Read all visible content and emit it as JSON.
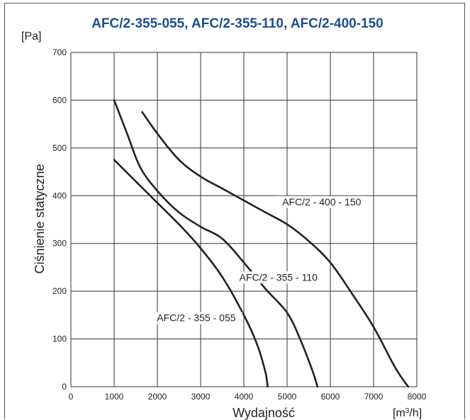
{
  "chart_data": {
    "type": "line",
    "title": "AFC/2-355-055, AFC/2-355-110, AFC/2-400-150",
    "ylabel": "Ciśnienie statyczne",
    "yunit": "[Pa]",
    "xlabel": "Wydajność",
    "xunit": "[m³/h]",
    "xlim": [
      0,
      8000
    ],
    "ylim": [
      0,
      700
    ],
    "xticks": [
      0,
      1000,
      2000,
      3000,
      4000,
      5000,
      6000,
      7000,
      8000
    ],
    "yticks": [
      0,
      100,
      200,
      300,
      400,
      500,
      600,
      700
    ],
    "grid": true,
    "series": [
      {
        "name": "AFC/2 - 355 - 055",
        "points": [
          [
            1000,
            475
          ],
          [
            1500,
            430
          ],
          [
            2000,
            385
          ],
          [
            2500,
            340
          ],
          [
            3000,
            290
          ],
          [
            3500,
            230
          ],
          [
            4000,
            150
          ],
          [
            4300,
            90
          ],
          [
            4500,
            30
          ],
          [
            4550,
            0
          ]
        ]
      },
      {
        "name": "AFC/2 - 355 - 110",
        "points": [
          [
            1000,
            600
          ],
          [
            1300,
            530
          ],
          [
            1600,
            460
          ],
          [
            2000,
            410
          ],
          [
            2500,
            365
          ],
          [
            3000,
            335
          ],
          [
            3500,
            310
          ],
          [
            4000,
            260
          ],
          [
            4500,
            205
          ],
          [
            5000,
            155
          ],
          [
            5300,
            100
          ],
          [
            5600,
            30
          ],
          [
            5700,
            0
          ]
        ]
      },
      {
        "name": "AFC/2 - 400 - 150",
        "points": [
          [
            1650,
            575
          ],
          [
            2000,
            530
          ],
          [
            2500,
            475
          ],
          [
            3000,
            440
          ],
          [
            3500,
            415
          ],
          [
            4000,
            390
          ],
          [
            4500,
            365
          ],
          [
            5000,
            340
          ],
          [
            5500,
            305
          ],
          [
            6000,
            260
          ],
          [
            6500,
            195
          ],
          [
            7000,
            125
          ],
          [
            7500,
            40
          ],
          [
            7800,
            0
          ]
        ]
      }
    ],
    "labels": [
      {
        "text": "AFC/2 - 400 - 150",
        "x": 5800,
        "y": 380
      },
      {
        "text": "AFC/2 - 355 - 110",
        "x": 4800,
        "y": 222
      },
      {
        "text": "AFC/2 - 355 - 055",
        "x": 2900,
        "y": 137
      }
    ]
  }
}
